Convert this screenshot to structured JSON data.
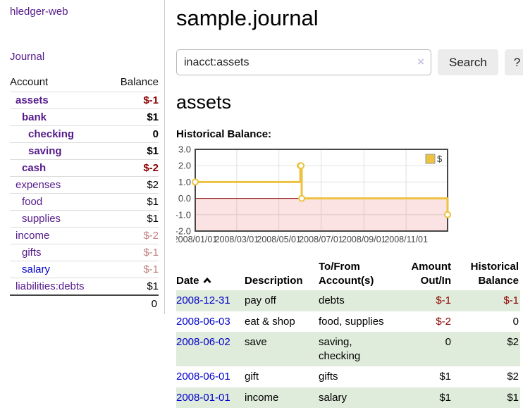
{
  "app": {
    "title": "hledger-web",
    "journal_link": "Journal"
  },
  "sidebar": {
    "account_header": "Account",
    "balance_header": "Balance",
    "accounts": [
      {
        "name": "assets",
        "balance": "$-1",
        "depth": 1
      },
      {
        "name": "bank",
        "balance": "$1",
        "depth": 2
      },
      {
        "name": "checking",
        "balance": "0",
        "depth": 3
      },
      {
        "name": "saving",
        "balance": "$1",
        "depth": 3
      },
      {
        "name": "cash",
        "balance": "$-2",
        "depth": 2
      },
      {
        "name": "expenses",
        "balance": "$2",
        "depth": 1
      },
      {
        "name": "food",
        "balance": "$1",
        "depth": 2
      },
      {
        "name": "supplies",
        "balance": "$1",
        "depth": 2
      },
      {
        "name": "income",
        "balance": "$-2",
        "depth": 1
      },
      {
        "name": "gifts",
        "balance": "$-1",
        "depth": 2
      },
      {
        "name": "salary",
        "balance": "$-1",
        "depth": 2
      },
      {
        "name": "liabilities:debts",
        "balance": "$1",
        "depth": 1
      }
    ],
    "total": "0"
  },
  "main": {
    "title": "sample.journal",
    "search": {
      "value": "inacct:assets",
      "clear_icon": "×",
      "button_label": "Search",
      "help_label": "?"
    },
    "account_heading": "assets",
    "chart_title": "Historical Balance:"
  },
  "chart_data": {
    "type": "line",
    "title": "Historical Balance",
    "step": true,
    "legend_position": "top-right",
    "ylim": [
      -2,
      3
    ],
    "x_range_days": [
      0,
      365
    ],
    "yticks": [
      {
        "value": 3,
        "label": "3.0"
      },
      {
        "value": 2,
        "label": "2.0"
      },
      {
        "value": 1,
        "label": "1.0"
      },
      {
        "value": 0,
        "label": "0.0"
      },
      {
        "value": -1,
        "label": "-1.0"
      },
      {
        "value": -2,
        "label": "-2.0"
      }
    ],
    "xticks": [
      {
        "day": 0,
        "label": "2008/01/01"
      },
      {
        "day": 60,
        "label": "2008/03/01"
      },
      {
        "day": 121,
        "label": "2008/05/01"
      },
      {
        "day": 182,
        "label": "2008/07/01"
      },
      {
        "day": 244,
        "label": "2008/09/01"
      },
      {
        "day": 305,
        "label": "2008/11/01"
      }
    ],
    "series": [
      {
        "name": "$",
        "color": "#edc240",
        "points": [
          {
            "date": "2008-01-01",
            "day": 0,
            "value": 1
          },
          {
            "date": "2008-06-01",
            "day": 152,
            "value": 2
          },
          {
            "date": "2008-06-02",
            "day": 153,
            "value": 2
          },
          {
            "date": "2008-06-03",
            "day": 154,
            "value": 0
          },
          {
            "date": "2008-12-31",
            "day": 365,
            "value": -1
          }
        ]
      }
    ],
    "zero_line_color": "#8b0000",
    "negative_region_color": "rgba(240,100,100,0.18)",
    "grid_color": "#e0e0e0",
    "border_color": "#474747"
  },
  "register": {
    "headers": [
      "Date",
      "Description",
      "To/From Account(s)",
      "Amount Out/In",
      "Historical Balance"
    ],
    "rows": [
      {
        "date": "2008-12-31",
        "description": "pay off",
        "accounts": "debts",
        "amount": "$-1",
        "balance": "$-1"
      },
      {
        "date": "2008-06-03",
        "description": "eat & shop",
        "accounts": "food, supplies",
        "amount": "$-2",
        "balance": "0"
      },
      {
        "date": "2008-06-02",
        "description": "save",
        "accounts": "saving, checking",
        "amount": "0",
        "balance": "$2"
      },
      {
        "date": "2008-06-01",
        "description": "gift",
        "accounts": "gifts",
        "amount": "$1",
        "balance": "$2"
      },
      {
        "date": "2008-01-01",
        "description": "income",
        "accounts": "salary",
        "amount": "$1",
        "balance": "$1"
      }
    ]
  },
  "colors": {
    "link_purple": "#551a8b",
    "link_blue": "#0000cc",
    "negative_strong": "#8b0000",
    "negative_soft": "#c17f7f",
    "row_green": "#dfebdb",
    "series_gold": "#edc240"
  }
}
